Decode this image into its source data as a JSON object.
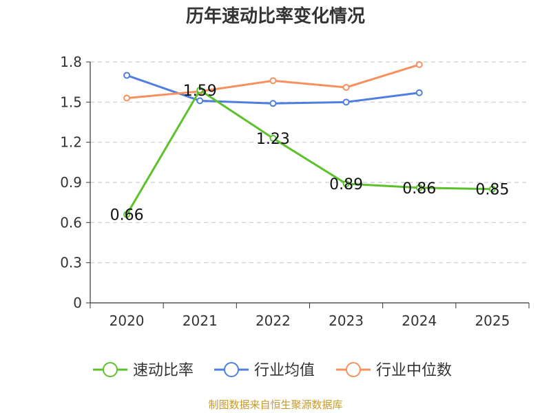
{
  "chart_data": {
    "type": "line",
    "title": "历年速动比率变化情况",
    "categories": [
      "2020",
      "2021",
      "2022",
      "2023",
      "2024",
      "2025"
    ],
    "ylim": [
      0,
      1.8
    ],
    "yticks": [
      "0",
      "0.3",
      "0.6",
      "0.9",
      "1.2",
      "1.5",
      "1.8"
    ],
    "grid": true,
    "legend_position": "bottom",
    "series": [
      {
        "name": "速动比率",
        "color": "#5cc12b",
        "values": [
          0.66,
          1.59,
          1.23,
          0.89,
          0.86,
          0.85
        ],
        "labels": [
          "0.66",
          "1.59",
          "1.23",
          "0.89",
          "0.86",
          "0.85"
        ]
      },
      {
        "name": "行业均值",
        "color": "#4f7fde",
        "values": [
          1.7,
          1.51,
          1.49,
          1.5,
          1.57,
          null
        ]
      },
      {
        "name": "行业中位数",
        "color": "#f6905f",
        "values": [
          1.53,
          1.58,
          1.66,
          1.61,
          1.78,
          null
        ]
      }
    ]
  },
  "footer": {
    "source": "制图数据来自恒生聚源数据库"
  }
}
